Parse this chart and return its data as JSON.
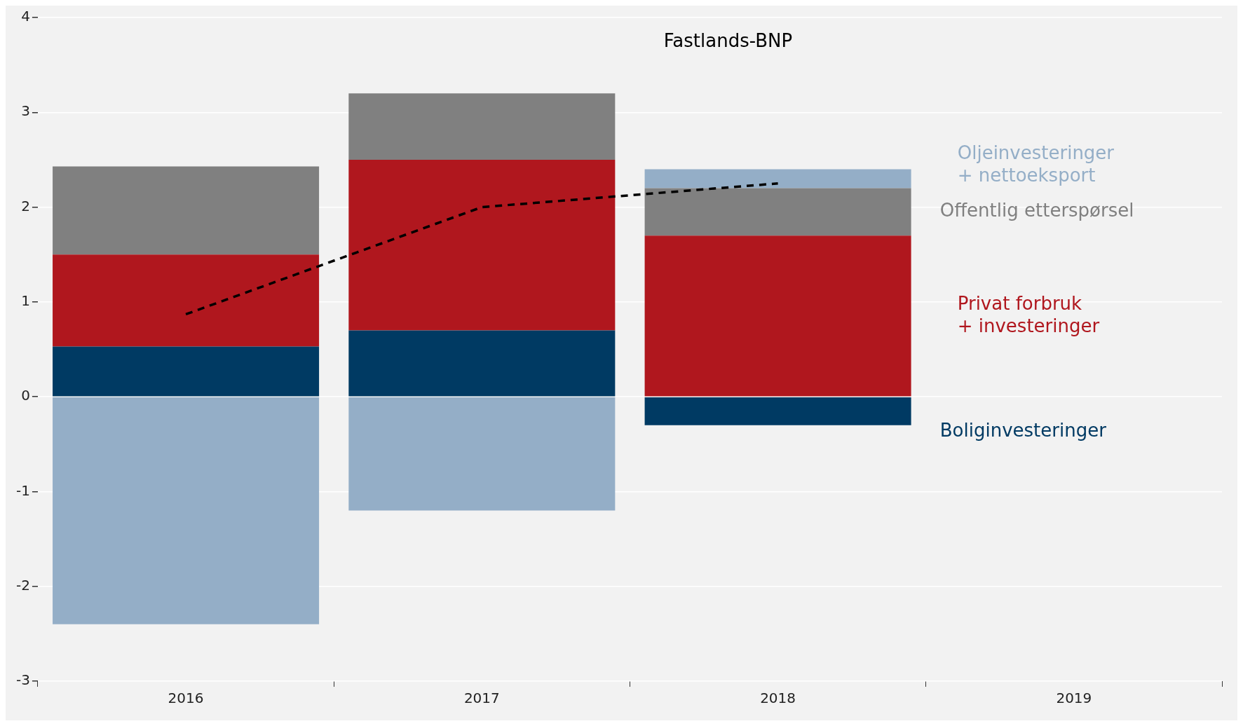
{
  "chart_data": {
    "type": "bar",
    "stacked": true,
    "categories": [
      "2016",
      "2017",
      "2018",
      "2019"
    ],
    "series": [
      {
        "name": "Boliginvesteringer",
        "color": "#003a63",
        "values": [
          0.53,
          0.7,
          -0.3,
          null
        ]
      },
      {
        "name": "Privat forbruk\n+ investeringer",
        "color": "#b0171e",
        "values": [
          0.97,
          1.8,
          1.7,
          null
        ]
      },
      {
        "name": "Offentlig etterspørsel",
        "color": "#808080",
        "values": [
          0.93,
          0.7,
          0.5,
          null
        ]
      },
      {
        "name": "Oljeinvesteringer\n+ nettoeksport",
        "color": "#94aec7",
        "values": [
          -2.4,
          -1.2,
          0.2,
          null
        ]
      },
      {
        "name": "Fastlands-BNP",
        "type": "line",
        "color": "#000000",
        "line_style": "dashed",
        "marker": "none",
        "values": [
          0.87,
          2.0,
          2.25,
          null
        ]
      }
    ],
    "ylim": [
      -3,
      4
    ],
    "yticks": [
      -3,
      -2,
      -1,
      0,
      1,
      2,
      3,
      4
    ],
    "grid": "y",
    "legend": false
  }
}
